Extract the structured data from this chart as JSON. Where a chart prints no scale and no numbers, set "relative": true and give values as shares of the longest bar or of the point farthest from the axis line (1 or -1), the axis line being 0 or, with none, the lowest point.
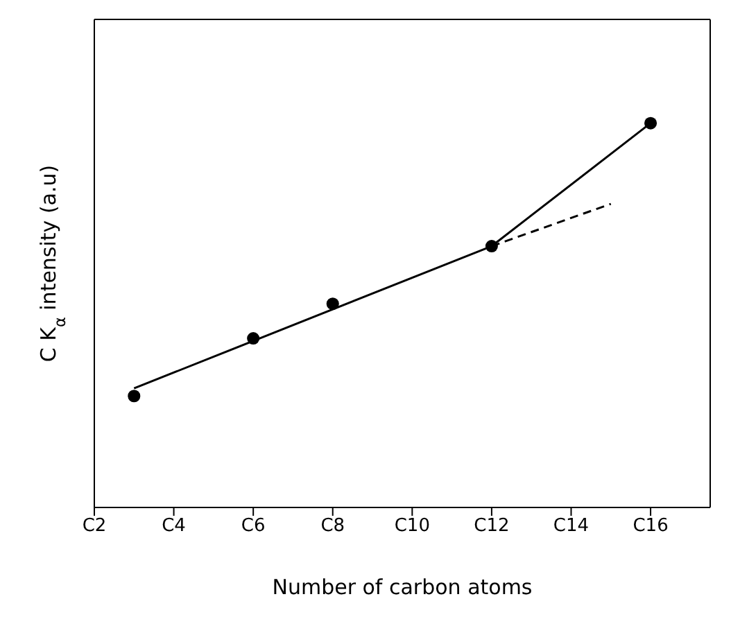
{
  "chart_data": {
    "type": "scatter",
    "relative": true,
    "xlabel": "Number of carbon atoms",
    "ylabel": "C K$_{α}$ intensity (a.u)",
    "categories": [
      "C2",
      null,
      "C4",
      null,
      "C6",
      null,
      "C8",
      null,
      "C10",
      null,
      "C12",
      null,
      "C14",
      null,
      "C16",
      null
    ],
    "grid": false,
    "series": [
      {
        "color": "#000000",
        "marker": "circle",
        "values": [
          null,
          0.29,
          null,
          null,
          0.44,
          null,
          0.53,
          null,
          null,
          null,
          0.68,
          null,
          null,
          null,
          1.0,
          null
        ]
      },
      {
        "type": "line",
        "color": "#000000",
        "marker": "none",
        "line_style": "solid",
        "values": [
          null,
          0.31,
          null,
          null,
          null,
          null,
          null,
          null,
          null,
          null,
          0.68,
          null,
          null,
          null,
          1.0,
          null
        ]
      },
      {
        "type": "line",
        "color": "#000000",
        "marker": "none",
        "line_style": "dashed",
        "values": [
          null,
          null,
          null,
          null,
          null,
          null,
          null,
          null,
          null,
          null,
          0.68,
          null,
          null,
          0.79,
          null,
          null
        ]
      }
    ]
  }
}
